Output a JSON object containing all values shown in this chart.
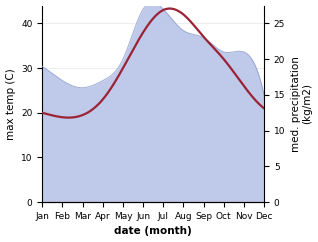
{
  "months": [
    "Jan",
    "Feb",
    "Mar",
    "Apr",
    "May",
    "Jun",
    "Jul",
    "Aug",
    "Sep",
    "Oct",
    "Nov",
    "Dec"
  ],
  "temp": [
    20,
    19,
    19.5,
    23,
    30,
    38,
    43,
    42,
    37,
    32,
    26,
    21
  ],
  "precip_mm": [
    19,
    17,
    16,
    17,
    20,
    27,
    27,
    24,
    23,
    21,
    21,
    15
  ],
  "temp_color": "#9b2335",
  "precip_fill_color": "#b8c4e8",
  "precip_line_color": "#8899cc",
  "temp_ylim": [
    0,
    44
  ],
  "precip_ylim": [
    0,
    27.5
  ],
  "temp_yticks": [
    0,
    10,
    20,
    30,
    40
  ],
  "precip_yticks": [
    0,
    5,
    10,
    15,
    20,
    25
  ],
  "xlabel": "date (month)",
  "ylabel_left": "max temp (C)",
  "ylabel_right": "med. precipitation\n(kg/m2)",
  "label_fontsize": 7.5,
  "tick_fontsize": 6.5
}
